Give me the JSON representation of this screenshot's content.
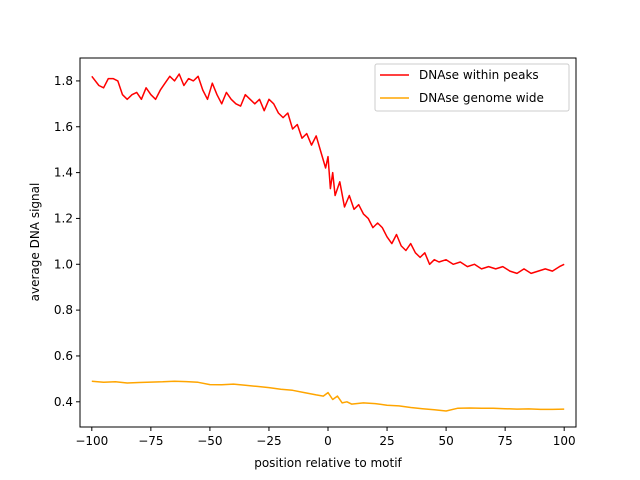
{
  "chart_data": {
    "type": "line",
    "title": "",
    "xlabel": "position relative to motif",
    "ylabel": "average DNA signal",
    "xlim": [
      -105,
      105
    ],
    "ylim": [
      0.29,
      1.9
    ],
    "xticks": [
      -100,
      -75,
      -50,
      -25,
      0,
      25,
      50,
      75,
      100
    ],
    "xtick_labels": [
      "−100",
      "−75",
      "−50",
      "−25",
      "0",
      "25",
      "50",
      "75",
      "100"
    ],
    "yticks": [
      0.4,
      0.6,
      0.8,
      1.0,
      1.2,
      1.4,
      1.6,
      1.8
    ],
    "ytick_labels": [
      "0.4",
      "0.6",
      "0.8",
      "1.0",
      "1.2",
      "1.4",
      "1.6",
      "1.8"
    ],
    "grid": false,
    "legend_position": "top-right",
    "series": [
      {
        "name": "DNAse within peaks",
        "color": "#ff0000",
        "x": [
          -100,
          -97,
          -95,
          -93,
          -91,
          -89,
          -87,
          -85,
          -83,
          -81,
          -79,
          -77,
          -75,
          -73,
          -71,
          -69,
          -67,
          -65,
          -63,
          -61,
          -59,
          -57,
          -55,
          -53,
          -51,
          -49,
          -47,
          -45,
          -43,
          -41,
          -39,
          -37,
          -35,
          -33,
          -31,
          -29,
          -27,
          -25,
          -23,
          -21,
          -19,
          -17,
          -15,
          -13,
          -11,
          -9,
          -7,
          -5,
          -3,
          -1,
          0,
          1,
          2,
          3,
          5,
          7,
          9,
          11,
          13,
          15,
          17,
          19,
          21,
          23,
          25,
          27,
          29,
          31,
          33,
          35,
          37,
          39,
          41,
          43,
          45,
          47,
          50,
          53,
          56,
          59,
          62,
          65,
          68,
          71,
          74,
          77,
          80,
          83,
          86,
          89,
          92,
          95,
          98,
          100
        ],
        "y": [
          1.82,
          1.78,
          1.77,
          1.81,
          1.81,
          1.8,
          1.74,
          1.72,
          1.74,
          1.75,
          1.72,
          1.77,
          1.74,
          1.72,
          1.76,
          1.79,
          1.82,
          1.8,
          1.83,
          1.78,
          1.81,
          1.8,
          1.82,
          1.76,
          1.72,
          1.79,
          1.74,
          1.7,
          1.75,
          1.72,
          1.7,
          1.69,
          1.74,
          1.72,
          1.7,
          1.72,
          1.67,
          1.72,
          1.7,
          1.66,
          1.64,
          1.66,
          1.59,
          1.61,
          1.55,
          1.57,
          1.52,
          1.56,
          1.49,
          1.42,
          1.47,
          1.33,
          1.4,
          1.3,
          1.36,
          1.25,
          1.3,
          1.24,
          1.26,
          1.22,
          1.2,
          1.16,
          1.18,
          1.16,
          1.12,
          1.09,
          1.13,
          1.08,
          1.06,
          1.09,
          1.05,
          1.03,
          1.05,
          1.0,
          1.02,
          1.01,
          1.02,
          1.0,
          1.01,
          0.99,
          1.0,
          0.98,
          0.99,
          0.98,
          0.99,
          0.97,
          0.96,
          0.98,
          0.96,
          0.97,
          0.98,
          0.97,
          0.99,
          1.0
        ]
      },
      {
        "name": "DNAse genome wide",
        "color": "#ffa500",
        "x": [
          -100,
          -95,
          -90,
          -85,
          -80,
          -75,
          -70,
          -65,
          -60,
          -55,
          -50,
          -45,
          -40,
          -35,
          -30,
          -25,
          -20,
          -15,
          -10,
          -5,
          -2,
          0,
          2,
          4,
          6,
          8,
          10,
          15,
          20,
          25,
          30,
          35,
          40,
          45,
          50,
          55,
          60,
          65,
          70,
          75,
          80,
          85,
          90,
          95,
          100
        ],
        "y": [
          0.49,
          0.485,
          0.487,
          0.482,
          0.484,
          0.486,
          0.487,
          0.49,
          0.488,
          0.485,
          0.475,
          0.474,
          0.477,
          0.472,
          0.467,
          0.462,
          0.455,
          0.45,
          0.44,
          0.43,
          0.425,
          0.44,
          0.41,
          0.425,
          0.395,
          0.4,
          0.39,
          0.395,
          0.392,
          0.385,
          0.382,
          0.375,
          0.37,
          0.365,
          0.36,
          0.372,
          0.373,
          0.372,
          0.372,
          0.37,
          0.368,
          0.369,
          0.367,
          0.367,
          0.368
        ]
      }
    ]
  }
}
